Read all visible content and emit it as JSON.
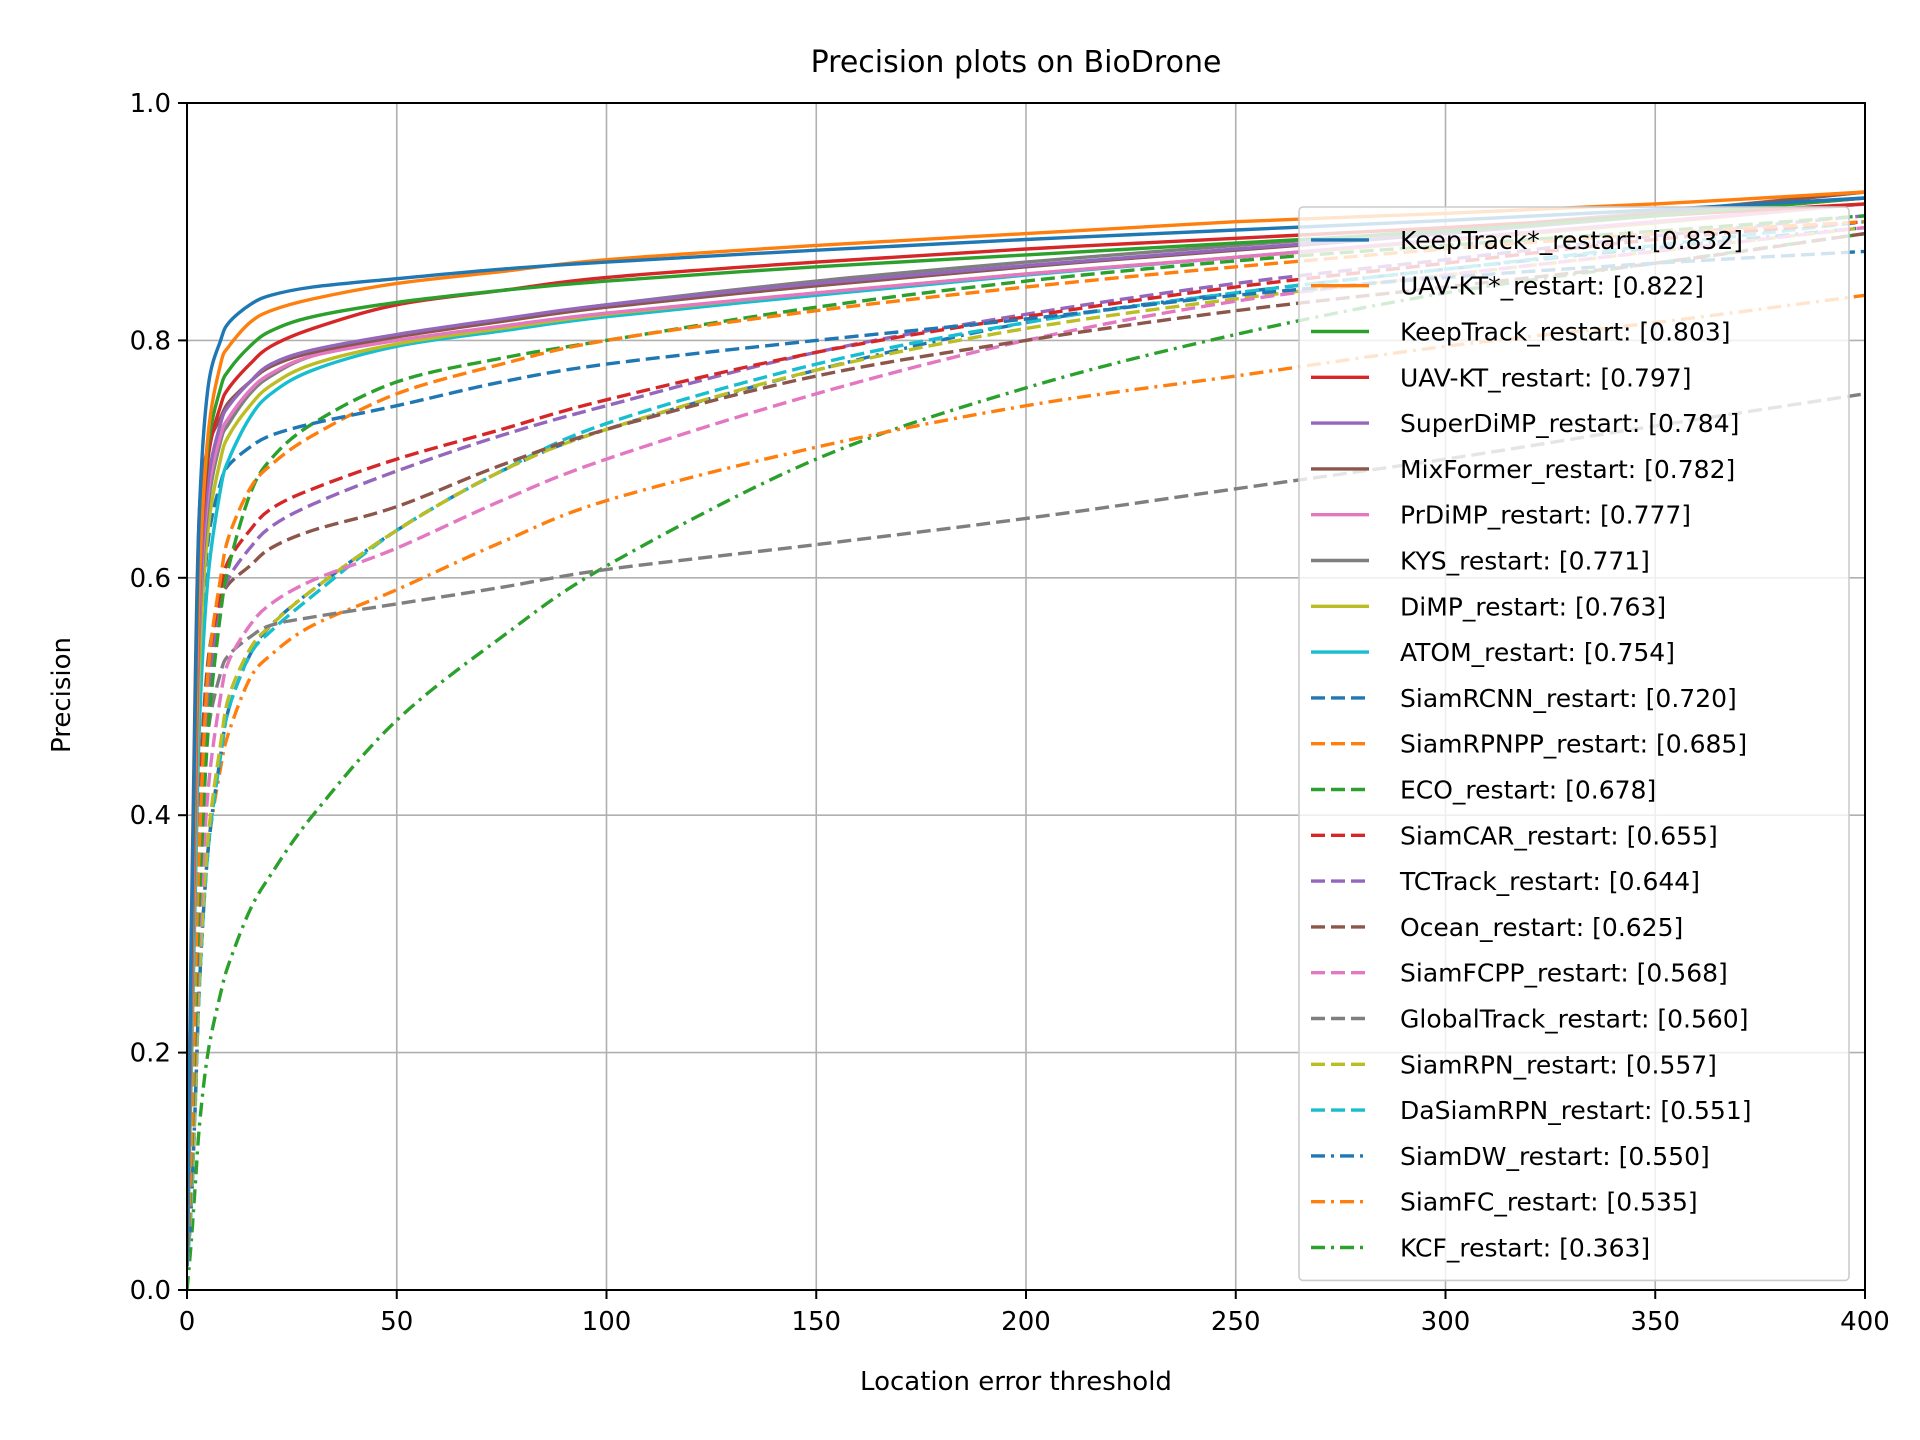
{
  "chart_data": {
    "type": "line",
    "title": "Precision plots on BioDrone",
    "xlabel": "Location error threshold",
    "ylabel": "Precision",
    "xlim": [
      0,
      400
    ],
    "ylim": [
      0,
      1.0
    ],
    "xticks": [
      0,
      50,
      100,
      150,
      200,
      250,
      300,
      350,
      400
    ],
    "xtick_labels": [
      "0",
      "50",
      "100",
      "150",
      "200",
      "250",
      "300",
      "350",
      "400"
    ],
    "yticks": [
      0,
      0.2,
      0.4,
      0.6,
      0.8,
      1.0
    ],
    "ytick_labels": [
      "0.0",
      "0.2",
      "0.4",
      "0.6",
      "0.8",
      "1.0"
    ],
    "grid": true,
    "legend_position": "right",
    "x": [
      0,
      1,
      2,
      3,
      5,
      8,
      10,
      15,
      20,
      30,
      50,
      75,
      100,
      150,
      200,
      250,
      300,
      350,
      400
    ],
    "series": [
      {
        "name": "KeepTrack*_restart: [0.832]",
        "label": "KeepTrack*_restart: [0.832]",
        "color": "#1f77b4",
        "dash": "solid",
        "values": [
          0.02,
          0.28,
          0.5,
          0.66,
          0.76,
          0.8,
          0.815,
          0.83,
          0.838,
          0.845,
          0.852,
          0.86,
          0.866,
          0.876,
          0.885,
          0.893,
          0.901,
          0.91,
          0.92
        ]
      },
      {
        "name": "UAV-KT*_restart: [0.822]",
        "label": "UAV-KT*_restart: [0.822]",
        "color": "#ff7f0e",
        "dash": "solid",
        "values": [
          0.02,
          0.25,
          0.45,
          0.6,
          0.72,
          0.78,
          0.795,
          0.815,
          0.825,
          0.835,
          0.848,
          0.858,
          0.868,
          0.88,
          0.89,
          0.9,
          0.907,
          0.915,
          0.925
        ]
      },
      {
        "name": "KeepTrack_restart: [0.803]",
        "label": "KeepTrack_restart: [0.803]",
        "color": "#2ca02c",
        "dash": "solid",
        "values": [
          0.02,
          0.26,
          0.46,
          0.61,
          0.71,
          0.76,
          0.775,
          0.795,
          0.808,
          0.82,
          0.832,
          0.842,
          0.85,
          0.862,
          0.872,
          0.882,
          0.892,
          0.905,
          0.92
        ]
      },
      {
        "name": "UAV-KT_restart: [0.797]",
        "label": "UAV-KT_restart: [0.797]",
        "color": "#d62728",
        "dash": "solid",
        "values": [
          0.02,
          0.24,
          0.44,
          0.6,
          0.7,
          0.745,
          0.76,
          0.78,
          0.795,
          0.81,
          0.83,
          0.842,
          0.853,
          0.866,
          0.877,
          0.886,
          0.895,
          0.905,
          0.915
        ]
      },
      {
        "name": "SuperDiMP_restart: [0.784]",
        "label": "SuperDiMP_restart: [0.784]",
        "color": "#9467bd",
        "dash": "solid",
        "values": [
          0.02,
          0.23,
          0.42,
          0.58,
          0.68,
          0.73,
          0.745,
          0.765,
          0.78,
          0.792,
          0.805,
          0.818,
          0.83,
          0.848,
          0.863,
          0.877,
          0.89,
          0.905,
          0.92
        ]
      },
      {
        "name": "MixFormer_restart: [0.782]",
        "label": "MixFormer_restart: [0.782]",
        "color": "#8c564b",
        "dash": "solid",
        "values": [
          0.02,
          0.3,
          0.52,
          0.66,
          0.71,
          0.735,
          0.748,
          0.765,
          0.778,
          0.79,
          0.803,
          0.816,
          0.828,
          0.846,
          0.862,
          0.876,
          0.89,
          0.907,
          0.925
        ]
      },
      {
        "name": "PrDiMP_restart: [0.777]",
        "label": "PrDiMP_restart: [0.777]",
        "color": "#e377c2",
        "dash": "solid",
        "values": [
          0.02,
          0.22,
          0.41,
          0.57,
          0.67,
          0.72,
          0.735,
          0.758,
          0.772,
          0.787,
          0.8,
          0.812,
          0.823,
          0.84,
          0.856,
          0.87,
          0.885,
          0.9,
          0.915
        ]
      },
      {
        "name": "KYS_restart: [0.771]",
        "label": "KYS_restart: [0.771]",
        "color": "#7f7f7f",
        "dash": "solid",
        "values": [
          0.02,
          0.22,
          0.4,
          0.56,
          0.66,
          0.715,
          0.73,
          0.755,
          0.77,
          0.787,
          0.803,
          0.817,
          0.83,
          0.85,
          0.866,
          0.88,
          0.893,
          0.908,
          0.925
        ]
      },
      {
        "name": "DiMP_restart: [0.763]",
        "label": "DiMP_restart: [0.763]",
        "color": "#bcbd22",
        "dash": "solid",
        "values": [
          0.02,
          0.2,
          0.38,
          0.53,
          0.64,
          0.7,
          0.72,
          0.745,
          0.762,
          0.78,
          0.797,
          0.81,
          0.822,
          0.84,
          0.856,
          0.87,
          0.884,
          0.899,
          0.915
        ]
      },
      {
        "name": "ATOM_restart: [0.754]",
        "label": "ATOM_restart: [0.754]",
        "color": "#17becf",
        "dash": "solid",
        "values": [
          0.02,
          0.18,
          0.34,
          0.48,
          0.6,
          0.675,
          0.7,
          0.735,
          0.755,
          0.775,
          0.795,
          0.808,
          0.82,
          0.838,
          0.855,
          0.87,
          0.885,
          0.9,
          0.915
        ]
      },
      {
        "name": "SiamRCNN_restart: [0.720]",
        "label": "SiamRCNN_restart: [0.720]",
        "color": "#1f77b4",
        "dash": "dash",
        "values": [
          0.02,
          0.22,
          0.4,
          0.53,
          0.63,
          0.68,
          0.695,
          0.71,
          0.72,
          0.73,
          0.745,
          0.765,
          0.78,
          0.8,
          0.818,
          0.838,
          0.853,
          0.865,
          0.875
        ]
      },
      {
        "name": "SiamRPNPP_restart: [0.685]",
        "label": "SiamRPNPP_restart: [0.685]",
        "color": "#ff7f0e",
        "dash": "dash",
        "values": [
          0.02,
          0.12,
          0.26,
          0.38,
          0.52,
          0.6,
          0.635,
          0.675,
          0.695,
          0.72,
          0.755,
          0.78,
          0.8,
          0.825,
          0.845,
          0.862,
          0.877,
          0.89,
          0.9
        ]
      },
      {
        "name": "ECO_restart: [0.678]",
        "label": "ECO_restart: [0.678]",
        "color": "#2ca02c",
        "dash": "dash",
        "values": [
          0.02,
          0.1,
          0.22,
          0.33,
          0.47,
          0.57,
          0.61,
          0.67,
          0.7,
          0.73,
          0.765,
          0.785,
          0.8,
          0.828,
          0.85,
          0.867,
          0.88,
          0.892,
          0.905
        ]
      },
      {
        "name": "SiamCAR_restart: [0.655]",
        "label": "SiamCAR_restart: [0.655]",
        "color": "#d62728",
        "dash": "dash",
        "values": [
          0.02,
          0.14,
          0.28,
          0.4,
          0.52,
          0.59,
          0.615,
          0.64,
          0.658,
          0.675,
          0.7,
          0.725,
          0.75,
          0.79,
          0.82,
          0.845,
          0.865,
          0.885,
          0.9
        ]
      },
      {
        "name": "TCTrack_restart: [0.644]",
        "label": "TCTrack_restart: [0.644]",
        "color": "#9467bd",
        "dash": "dash",
        "values": [
          0.02,
          0.13,
          0.26,
          0.38,
          0.5,
          0.575,
          0.6,
          0.625,
          0.643,
          0.662,
          0.69,
          0.72,
          0.745,
          0.79,
          0.822,
          0.848,
          0.868,
          0.888,
          0.905
        ]
      },
      {
        "name": "Ocean_restart: [0.625]",
        "label": "Ocean_restart: [0.625]",
        "color": "#8c564b",
        "dash": "dash",
        "values": [
          0.02,
          0.15,
          0.3,
          0.42,
          0.53,
          0.58,
          0.595,
          0.61,
          0.625,
          0.64,
          0.66,
          0.695,
          0.725,
          0.77,
          0.8,
          0.825,
          0.845,
          0.865,
          0.89
        ]
      },
      {
        "name": "SiamFCPP_restart: [0.568]",
        "label": "SiamFCPP_restart: [0.568]",
        "color": "#e377c2",
        "dash": "dash",
        "values": [
          0.02,
          0.09,
          0.2,
          0.3,
          0.42,
          0.5,
          0.53,
          0.56,
          0.578,
          0.598,
          0.625,
          0.665,
          0.7,
          0.755,
          0.8,
          0.833,
          0.855,
          0.875,
          0.895
        ]
      },
      {
        "name": "GlobalTrack_restart: [0.560]",
        "label": "GlobalTrack_restart: [0.560]",
        "color": "#7f7f7f",
        "dash": "dash",
        "values": [
          0.02,
          0.12,
          0.26,
          0.38,
          0.47,
          0.52,
          0.535,
          0.55,
          0.56,
          0.567,
          0.578,
          0.592,
          0.607,
          0.628,
          0.65,
          0.675,
          0.7,
          0.728,
          0.755
        ]
      },
      {
        "name": "SiamRPN_restart: [0.557]",
        "label": "SiamRPN_restart: [0.557]",
        "color": "#bcbd22",
        "dash": "dash",
        "values": [
          0.02,
          0.08,
          0.17,
          0.27,
          0.38,
          0.46,
          0.5,
          0.54,
          0.56,
          0.59,
          0.64,
          0.69,
          0.725,
          0.775,
          0.81,
          0.835,
          0.855,
          0.875,
          0.895
        ]
      },
      {
        "name": "DaSiamRPN_restart: [0.551]",
        "label": "DaSiamRPN_restart: [0.551]",
        "color": "#17becf",
        "dash": "dash",
        "values": [
          0.02,
          0.07,
          0.16,
          0.26,
          0.37,
          0.45,
          0.49,
          0.535,
          0.555,
          0.585,
          0.64,
          0.69,
          0.73,
          0.78,
          0.815,
          0.84,
          0.86,
          0.88,
          0.9
        ]
      },
      {
        "name": "SiamDW_restart: [0.550]",
        "label": "SiamDW_restart: [0.550]",
        "color": "#1f77b4",
        "dash": "dashdot",
        "values": [
          0.02,
          0.07,
          0.16,
          0.26,
          0.37,
          0.45,
          0.49,
          0.535,
          0.56,
          0.59,
          0.64,
          0.69,
          0.725,
          0.775,
          0.815,
          0.84,
          0.86,
          0.878,
          0.895
        ]
      },
      {
        "name": "SiamFC_restart: [0.535]",
        "label": "SiamFC_restart: [0.535]",
        "color": "#ff7f0e",
        "dash": "dashdot",
        "values": [
          0.02,
          0.07,
          0.16,
          0.26,
          0.37,
          0.44,
          0.47,
          0.515,
          0.535,
          0.56,
          0.59,
          0.63,
          0.665,
          0.71,
          0.745,
          0.77,
          0.795,
          0.815,
          0.838
        ]
      },
      {
        "name": "KCF_restart: [0.363]",
        "label": "KCF_restart: [0.363]",
        "color": "#2ca02c",
        "dash": "dashdot",
        "values": [
          0.0,
          0.04,
          0.09,
          0.14,
          0.2,
          0.25,
          0.275,
          0.32,
          0.35,
          0.4,
          0.48,
          0.55,
          0.61,
          0.7,
          0.76,
          0.805,
          0.84,
          0.865,
          0.89
        ]
      }
    ]
  }
}
